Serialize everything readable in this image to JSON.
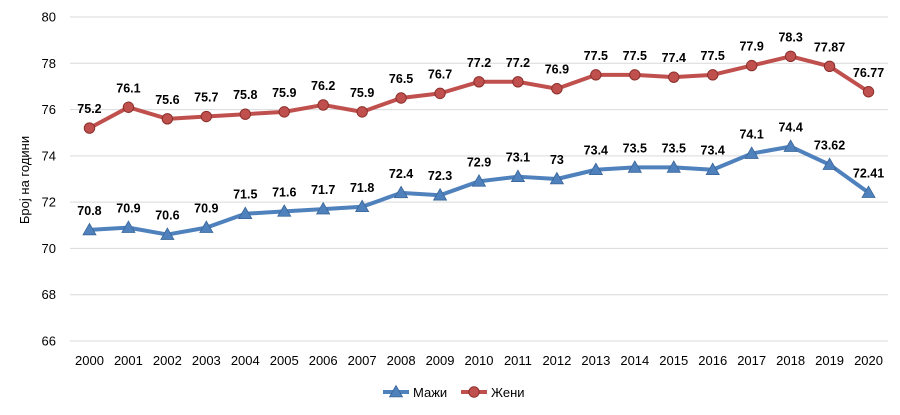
{
  "chart_data": {
    "type": "line",
    "title": "",
    "xlabel": "",
    "ylabel": "Број на години",
    "ylim": [
      66,
      80
    ],
    "yticks": [
      66,
      68,
      70,
      72,
      74,
      76,
      78,
      80
    ],
    "grid": true,
    "legend_position": "bottom",
    "x": [
      "2000",
      "2001",
      "2002",
      "2003",
      "2004",
      "2005",
      "2006",
      "2007",
      "2008",
      "2009",
      "2010",
      "2011",
      "2012",
      "2013",
      "2014",
      "2015",
      "2016",
      "2017",
      "2018",
      "2019",
      "2020"
    ],
    "series": [
      {
        "name": "Мажи",
        "color": "#4f81bd",
        "marker": "triangle",
        "values": [
          70.8,
          70.9,
          70.6,
          70.9,
          71.5,
          71.6,
          71.7,
          71.8,
          72.4,
          72.3,
          72.9,
          73.1,
          73.0,
          73.4,
          73.5,
          73.5,
          73.4,
          74.1,
          74.4,
          73.62,
          72.41
        ],
        "labels": [
          "70.8",
          "70.9",
          "70.6",
          "70.9",
          "71.5",
          "71.6",
          "71.7",
          "71.8",
          "72.4",
          "72.3",
          "72.9",
          "73.1",
          "73",
          "73.4",
          "73.5",
          "73.5",
          "73.4",
          "74.1",
          "74.4",
          "73.62",
          "72.41"
        ]
      },
      {
        "name": "Жени",
        "color": "#c0504d",
        "marker": "circle",
        "values": [
          75.2,
          76.1,
          75.6,
          75.7,
          75.8,
          75.9,
          76.2,
          75.9,
          76.5,
          76.7,
          77.2,
          77.2,
          76.9,
          77.5,
          77.5,
          77.4,
          77.5,
          77.9,
          78.3,
          77.87,
          76.77
        ],
        "labels": [
          "75.2",
          "76.1",
          "75.6",
          "75.7",
          "75.8",
          "75.9",
          "76.2",
          "75.9",
          "76.5",
          "76.7",
          "77.2",
          "77.2",
          "76.9",
          "77.5",
          "77.5",
          "77.4",
          "77.5",
          "77.9",
          "78.3",
          "77.87",
          "76.77"
        ]
      }
    ]
  }
}
